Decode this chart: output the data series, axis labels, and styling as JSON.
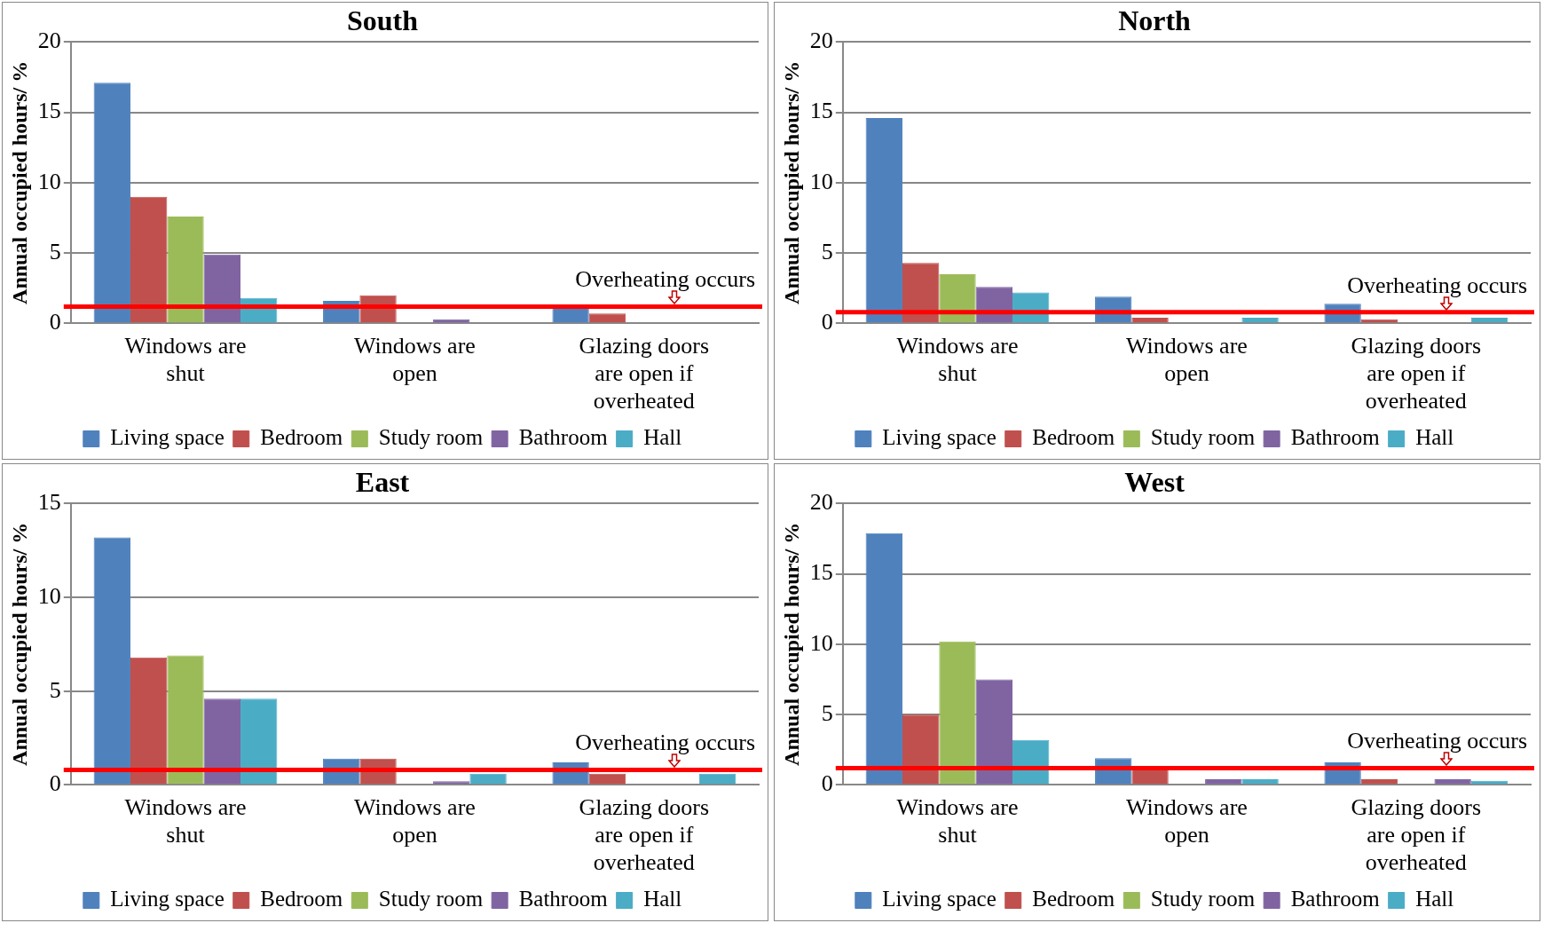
{
  "chart_data": [
    {
      "type": "bar",
      "title": "South",
      "ylabel": "Annual occupied hours/ %",
      "categories": [
        "Windows are shut",
        "Windows are open",
        "Glazing doors are open if overheated"
      ],
      "ylim": [
        0,
        20
      ],
      "yticks": [
        0,
        5,
        10,
        15,
        20
      ],
      "grid": "y",
      "legend": "bottom",
      "series": [
        {
          "name": "Living space",
          "color": "#4f81bd",
          "values": [
            17.1,
            1.6,
            1.2
          ]
        },
        {
          "name": "Bedroom",
          "color": "#c0504d",
          "values": [
            9.0,
            2.0,
            0.7
          ]
        },
        {
          "name": "Study room",
          "color": "#9bbb59",
          "values": [
            7.6,
            0,
            0
          ]
        },
        {
          "name": "Bathroom",
          "color": "#8064a2",
          "values": [
            4.9,
            0.3,
            0
          ]
        },
        {
          "name": "Hall",
          "color": "#4bacc6",
          "values": [
            1.8,
            0,
            0
          ]
        }
      ],
      "ref_lines": [
        {
          "axis": "y",
          "value": 1.2,
          "label": "Overheating occurs",
          "color": "#ff0000"
        }
      ]
    },
    {
      "type": "bar",
      "title": "North",
      "ylabel": "Annual occupied hours/ %",
      "categories": [
        "Windows are shut",
        "Windows are open",
        "Glazing doors are open if overheated"
      ],
      "ylim": [
        0,
        20
      ],
      "yticks": [
        0,
        5,
        10,
        15,
        20
      ],
      "grid": "y",
      "legend": "bottom",
      "series": [
        {
          "name": "Living space",
          "color": "#4f81bd",
          "values": [
            14.6,
            1.9,
            1.4
          ]
        },
        {
          "name": "Bedroom",
          "color": "#c0504d",
          "values": [
            4.3,
            0.4,
            0.3
          ]
        },
        {
          "name": "Study room",
          "color": "#9bbb59",
          "values": [
            3.5,
            0,
            0
          ]
        },
        {
          "name": "Bathroom",
          "color": "#8064a2",
          "values": [
            2.6,
            0,
            0
          ]
        },
        {
          "name": "Hall",
          "color": "#4bacc6",
          "values": [
            2.2,
            0.4,
            0.4
          ]
        }
      ],
      "ref_lines": [
        {
          "axis": "y",
          "value": 0.8,
          "label": "Overheating occurs",
          "color": "#ff0000"
        }
      ]
    },
    {
      "type": "bar",
      "title": "East",
      "ylabel": "Annual occupied hours/ %",
      "categories": [
        "Windows are shut",
        "Windows are open",
        "Glazing doors are open if overheated"
      ],
      "ylim": [
        0,
        15
      ],
      "yticks": [
        0,
        5,
        10,
        15
      ],
      "grid": "y",
      "legend": "bottom",
      "series": [
        {
          "name": "Living space",
          "color": "#4f81bd",
          "values": [
            13.2,
            1.4,
            1.2
          ]
        },
        {
          "name": "Bedroom",
          "color": "#c0504d",
          "values": [
            6.8,
            1.4,
            0.6
          ]
        },
        {
          "name": "Study room",
          "color": "#9bbb59",
          "values": [
            6.9,
            0,
            0
          ]
        },
        {
          "name": "Bathroom",
          "color": "#8064a2",
          "values": [
            4.6,
            0.2,
            0
          ]
        },
        {
          "name": "Hall",
          "color": "#4bacc6",
          "values": [
            4.6,
            0.6,
            0.6
          ]
        }
      ],
      "ref_lines": [
        {
          "axis": "y",
          "value": 0.8,
          "label": "Overheating occurs",
          "color": "#ff0000"
        }
      ]
    },
    {
      "type": "bar",
      "title": "West",
      "ylabel": "Annual occupied hours/ %",
      "categories": [
        "Windows are shut",
        "Windows are open",
        "Glazing doors are open if overheated"
      ],
      "ylim": [
        0,
        20
      ],
      "yticks": [
        0,
        5,
        10,
        15,
        20
      ],
      "grid": "y",
      "legend": "bottom",
      "series": [
        {
          "name": "Living space",
          "color": "#4f81bd",
          "values": [
            17.9,
            1.9,
            1.6
          ]
        },
        {
          "name": "Bedroom",
          "color": "#c0504d",
          "values": [
            5.0,
            1.1,
            0.4
          ]
        },
        {
          "name": "Study room",
          "color": "#9bbb59",
          "values": [
            10.2,
            0,
            0
          ]
        },
        {
          "name": "Bathroom",
          "color": "#8064a2",
          "values": [
            7.5,
            0.4,
            0.4
          ]
        },
        {
          "name": "Hall",
          "color": "#4bacc6",
          "values": [
            3.2,
            0.4,
            0.3
          ]
        }
      ],
      "ref_lines": [
        {
          "axis": "y",
          "value": 1.2,
          "label": "Overheating occurs",
          "color": "#ff0000"
        }
      ]
    }
  ]
}
